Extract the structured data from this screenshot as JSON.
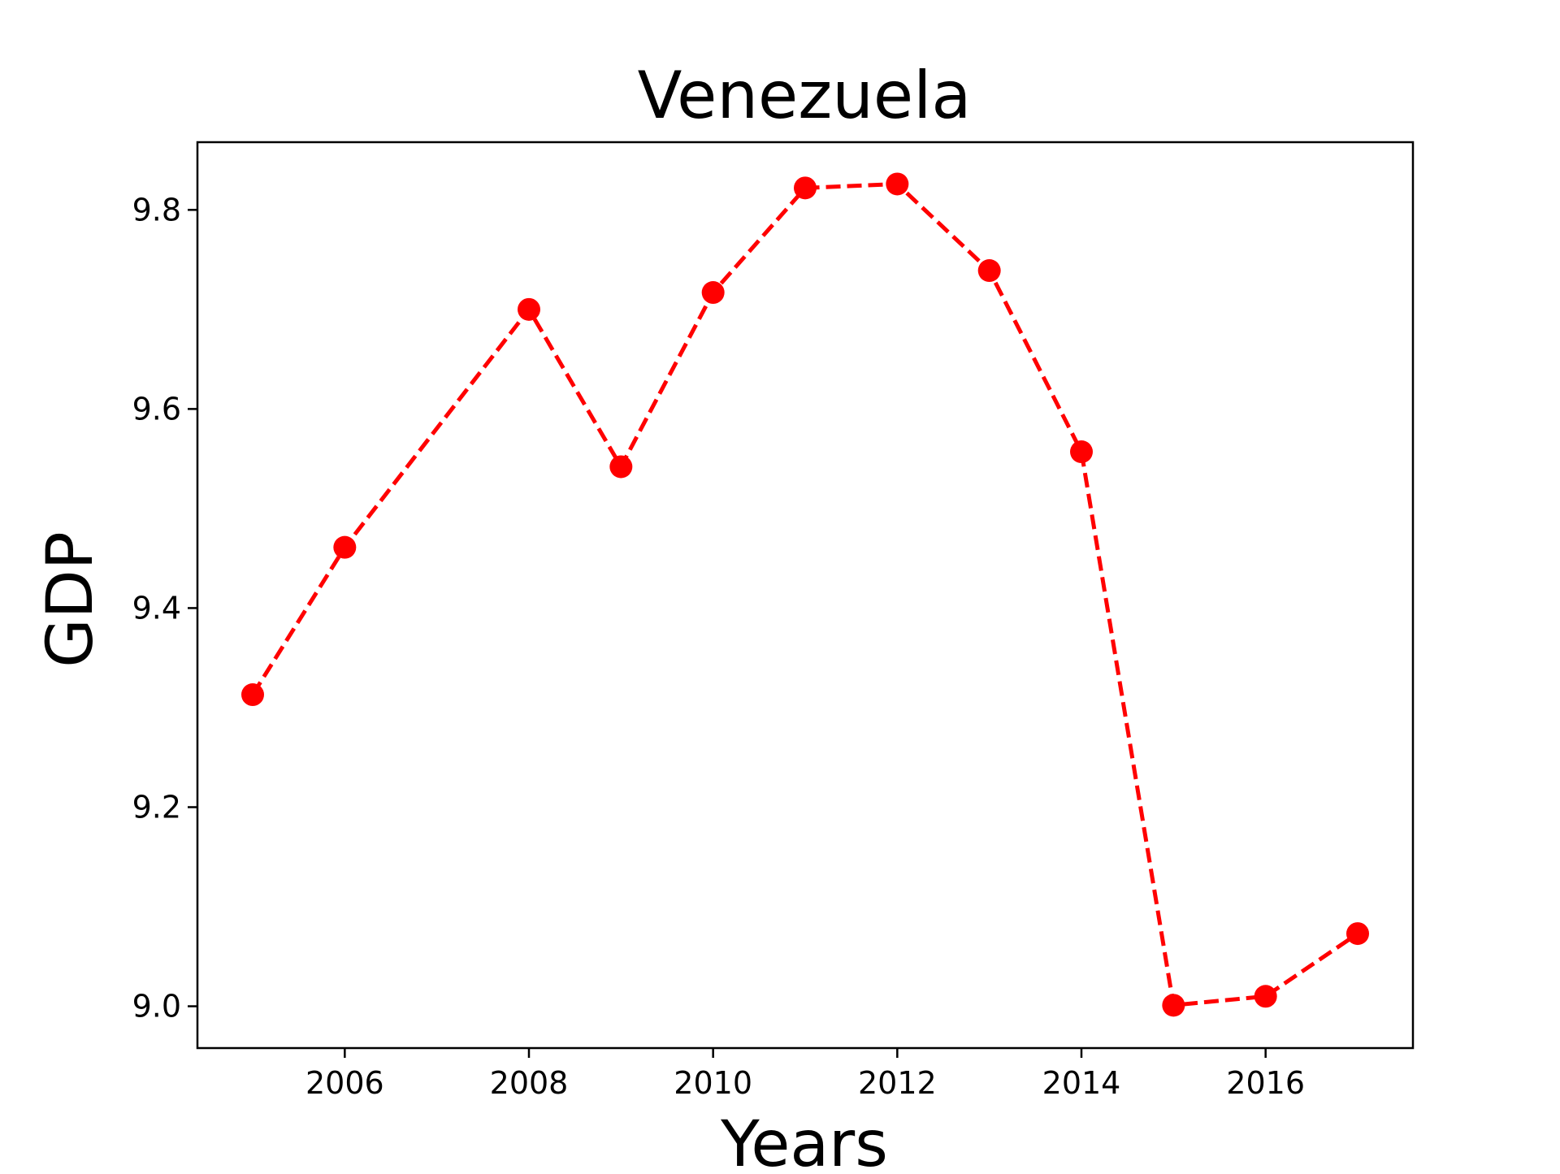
{
  "chart_data": {
    "type": "line",
    "title": "Venezuela",
    "xlabel": "Years",
    "ylabel": "GDP",
    "xlim": [
      2004.4,
      2017.6
    ],
    "ylim": [
      8.958,
      9.868
    ],
    "x_ticks": [
      2006,
      2008,
      2010,
      2012,
      2014,
      2016
    ],
    "y_ticks": [
      9.0,
      9.2,
      9.4,
      9.6,
      9.8
    ],
    "x_tick_labels": [
      "2006",
      "2008",
      "2010",
      "2012",
      "2014",
      "2016"
    ],
    "y_tick_labels": [
      "9.0",
      "9.2",
      "9.4",
      "9.6",
      "9.8"
    ],
    "grid": false,
    "legend": "none",
    "series": [
      {
        "color": "#ff0000",
        "line_style": "dashed",
        "marker": "circle",
        "x": [
          2005,
          2006,
          2008,
          2009,
          2010,
          2011,
          2012,
          2013,
          2014,
          2015,
          2016,
          2017
        ],
        "y": [
          9.313,
          9.461,
          9.7,
          9.542,
          9.717,
          9.822,
          9.826,
          9.739,
          9.557,
          9.001,
          9.01,
          9.073
        ]
      }
    ]
  }
}
